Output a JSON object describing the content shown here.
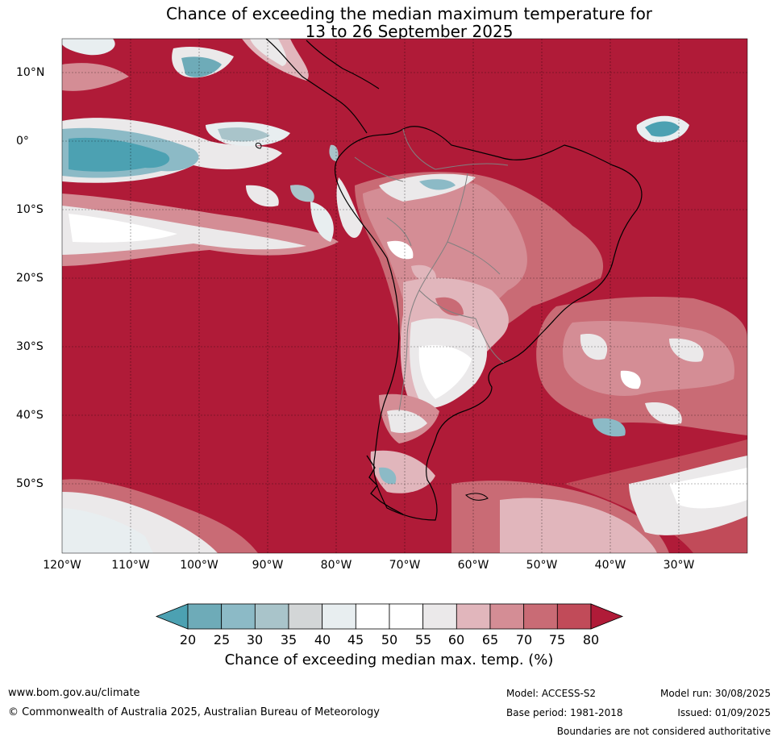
{
  "title_line1": "Chance of exceeding the median maximum temperature for",
  "title_line2": "13 to 26 September 2025",
  "lat_ticks": [
    "10°N",
    "0°",
    "10°S",
    "20°S",
    "30°S",
    "40°S",
    "50°S"
  ],
  "lon_ticks": [
    "120°W",
    "110°W",
    "100°W",
    "90°W",
    "80°W",
    "70°W",
    "60°W",
    "50°W",
    "40°W",
    "30°W"
  ],
  "legend": {
    "title": "Chance of exceeding median max. temp. (%)",
    "labels": [
      "20",
      "25",
      "30",
      "35",
      "40",
      "45",
      "50",
      "55",
      "60",
      "65",
      "70",
      "75",
      "80"
    ],
    "colors": [
      "#4ca1b2",
      "#6eabb8",
      "#8cbac6",
      "#a9c4ca",
      "#d3d6d7",
      "#e8eef0",
      "#ffffff",
      "#ffffff",
      "#ebe9ea",
      "#e1b6bc",
      "#d48d95",
      "#c96b75",
      "#c14b59",
      "#b01b38"
    ]
  },
  "map_colors": {
    "dominant": "#b01b38",
    "cool": "#4ca1b2",
    "land_outline": "#000000",
    "border": "#808080"
  },
  "footer": {
    "url": "www.bom.gov.au/climate",
    "copyright": "© Commonwealth of Australia 2025, Australian Bureau of Meteorology",
    "model": "Model: ACCESS-S2",
    "base_period": "Base period: 1981-2018",
    "model_run": "Model run: 30/08/2025",
    "issued": "Issued: 01/09/2025",
    "disclaimer": "Boundaries are not considered authoritative"
  }
}
